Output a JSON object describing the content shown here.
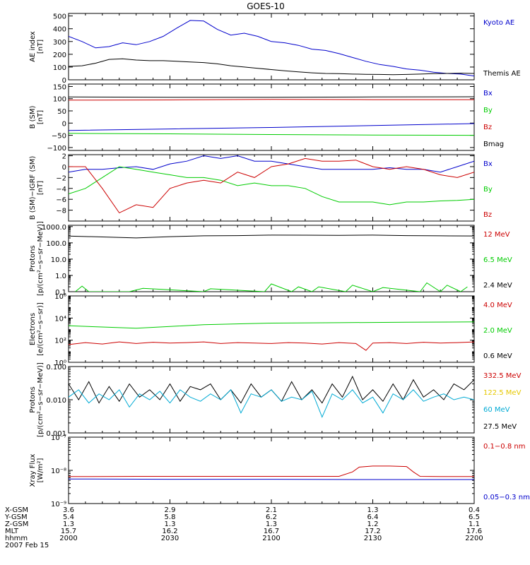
{
  "title": "GOES-10",
  "date_label": "2007 Feb 15",
  "colors": {
    "black": "#000000",
    "blue": "#0000cc",
    "green": "#00cc00",
    "red": "#cc0000",
    "yellow": "#e6c800",
    "cyan": "#00aad4"
  },
  "time_ticks": [
    "2000",
    "2030",
    "2100",
    "2130",
    "2200"
  ],
  "ephemeris": [
    {
      "name": "X-GSM",
      "values": [
        "3.6",
        "2.9",
        "2.1",
        "1.3",
        "0.4"
      ]
    },
    {
      "name": "Y-GSM",
      "values": [
        "5.4",
        "5.8",
        "6.2",
        "6.4",
        "6.5"
      ]
    },
    {
      "name": "Z-GSM",
      "values": [
        "1.3",
        "1.3",
        "1.3",
        "1.2",
        "1.1"
      ]
    },
    {
      "name": "MLT",
      "values": [
        "15.7",
        "16.2",
        "16.7",
        "17.2",
        "17.6"
      ]
    },
    {
      "name": "hhmm",
      "values": [
        "2000",
        "2030",
        "2100",
        "2130",
        "2200"
      ]
    }
  ],
  "chart_data": [
    {
      "type": "line",
      "ylabel": [
        "AE index",
        "[nT]"
      ],
      "yscale": "linear",
      "ylim": [
        0,
        520
      ],
      "yticks": [
        {
          "v": 0,
          "l": "0"
        },
        {
          "v": 100,
          "l": "100"
        },
        {
          "v": 200,
          "l": "200"
        },
        {
          "v": 300,
          "l": "300"
        },
        {
          "v": 400,
          "l": "400"
        },
        {
          "v": 500,
          "l": "500"
        }
      ],
      "xlim": [
        0,
        120
      ],
      "series": [
        {
          "name": "Kyoto AE",
          "color": "blue",
          "label_color": "blue",
          "x": [
            0,
            4,
            8,
            12,
            16,
            20,
            24,
            28,
            32,
            36,
            40,
            44,
            48,
            52,
            56,
            60,
            64,
            68,
            72,
            76,
            80,
            84,
            88,
            92,
            96,
            100,
            104,
            108,
            112,
            116,
            120
          ],
          "values": [
            340,
            300,
            250,
            260,
            290,
            275,
            300,
            340,
            405,
            465,
            460,
            395,
            350,
            365,
            340,
            300,
            290,
            270,
            240,
            230,
            205,
            175,
            145,
            120,
            105,
            85,
            75,
            60,
            50,
            45,
            30
          ]
        },
        {
          "name": "Themis AE",
          "color": "black",
          "label_color": "black",
          "x": [
            0,
            4,
            8,
            12,
            16,
            20,
            24,
            28,
            32,
            36,
            40,
            44,
            48,
            52,
            56,
            60,
            64,
            68,
            72,
            76,
            80,
            84,
            88,
            92,
            96,
            100,
            104,
            108,
            112,
            116,
            120
          ],
          "values": [
            105,
            110,
            130,
            160,
            165,
            155,
            150,
            150,
            145,
            140,
            135,
            125,
            110,
            100,
            90,
            80,
            70,
            62,
            55,
            50,
            48,
            45,
            43,
            42,
            40,
            42,
            45,
            48,
            50,
            52,
            50
          ]
        }
      ]
    },
    {
      "type": "line",
      "ylabel": [
        "B (SM)",
        "[nT]"
      ],
      "yscale": "linear",
      "ylim": [
        -112,
        160
      ],
      "yticks": [
        {
          "v": -100,
          "l": "−100"
        },
        {
          "v": -50,
          "l": "−50"
        },
        {
          "v": 0,
          "l": "0"
        },
        {
          "v": 50,
          "l": "50"
        },
        {
          "v": 100,
          "l": "100"
        },
        {
          "v": 150,
          "l": "150"
        }
      ],
      "xlim": [
        0,
        120
      ],
      "series": [
        {
          "name": "Bx",
          "color": "black",
          "label_color": "blue",
          "x": [
            0,
            30,
            60,
            90,
            120
          ],
          "values": [
            107,
            106,
            106,
            107,
            108
          ]
        },
        {
          "name": "By",
          "color": "red",
          "label_color": "green",
          "x": [
            0,
            30,
            60,
            90,
            120
          ],
          "values": [
            94,
            95,
            97,
            96,
            96
          ]
        },
        {
          "name": "Bz",
          "color": "blue",
          "label_color": "red",
          "x": [
            0,
            30,
            60,
            90,
            120
          ],
          "values": [
            -30,
            -24,
            -18,
            -10,
            -2
          ]
        },
        {
          "name": "Bmag",
          "color": "green",
          "label_color": "black",
          "x": [
            0,
            30,
            60,
            90,
            120
          ],
          "values": [
            -42,
            -44,
            -47,
            -49,
            -50
          ]
        }
      ]
    },
    {
      "type": "line",
      "ylabel": [
        "B (SM)−IGRF (SM)",
        "[nT]"
      ],
      "yscale": "linear",
      "ylim": [
        -10,
        2.2
      ],
      "yticks": [
        {
          "v": -8,
          "l": "−8"
        },
        {
          "v": -6,
          "l": "−6"
        },
        {
          "v": -4,
          "l": "−4"
        },
        {
          "v": -2,
          "l": "−2"
        },
        {
          "v": 0,
          "l": "0"
        },
        {
          "v": 2,
          "l": "2"
        }
      ],
      "xlim": [
        0,
        120
      ],
      "series": [
        {
          "name": "Bx",
          "color": "blue",
          "label_color": "blue",
          "x": [
            0,
            5,
            10,
            15,
            20,
            25,
            30,
            35,
            40,
            45,
            50,
            55,
            60,
            65,
            70,
            75,
            80,
            85,
            90,
            95,
            100,
            105,
            110,
            115,
            120
          ],
          "values": [
            -1,
            -0.5,
            -0.5,
            -0.2,
            0,
            -0.5,
            0.5,
            1,
            2,
            1.5,
            2,
            1,
            1,
            0.5,
            0,
            -0.5,
            -0.5,
            -0.5,
            -0.5,
            -0.2,
            -0.5,
            -0.5,
            -1,
            0,
            1
          ]
        },
        {
          "name": "By",
          "color": "green",
          "label_color": "green",
          "x": [
            0,
            5,
            10,
            15,
            20,
            25,
            30,
            35,
            40,
            45,
            50,
            55,
            60,
            65,
            70,
            75,
            80,
            85,
            90,
            95,
            100,
            105,
            110,
            115,
            120
          ],
          "values": [
            -5,
            -4,
            -2,
            0,
            -0.5,
            -1,
            -1.5,
            -2,
            -2,
            -2.5,
            -3.5,
            -3,
            -3.5,
            -3.5,
            -4,
            -5.5,
            -6.5,
            -6.5,
            -6.5,
            -7,
            -6.5,
            -6.5,
            -6.3,
            -6.2,
            -6
          ]
        },
        {
          "name": "Bz",
          "color": "red",
          "label_color": "red",
          "x": [
            0,
            5,
            10,
            15,
            20,
            25,
            30,
            35,
            40,
            45,
            50,
            55,
            60,
            65,
            70,
            75,
            80,
            85,
            90,
            95,
            100,
            105,
            110,
            115,
            120
          ],
          "values": [
            0,
            0,
            -4,
            -8.5,
            -7,
            -7.5,
            -4,
            -3,
            -2.5,
            -3,
            -1,
            -2,
            0,
            0.5,
            1.5,
            1,
            1,
            1.2,
            0,
            -0.5,
            0,
            -0.5,
            -1.5,
            -2,
            -1
          ]
        }
      ]
    },
    {
      "type": "line",
      "ylabel": [
        "Protons",
        "[p/(cm²−s−sr−MeV)]"
      ],
      "yscale": "log",
      "ylim": [
        0.1,
        1200
      ],
      "yticks": [
        {
          "v": 0.1,
          "l": "0.1"
        },
        {
          "v": 1,
          "l": "1.0"
        },
        {
          "v": 10,
          "l": "10.0"
        },
        {
          "v": 100,
          "l": "100.0"
        },
        {
          "v": 1000,
          "l": "1000.0"
        }
      ],
      "xlim": [
        0,
        120
      ],
      "series": [
        {
          "name": "12 MeV",
          "color": "black",
          "label_color": "red",
          "x": [
            0,
            10,
            20,
            30,
            40,
            50,
            60,
            70,
            80,
            90,
            100,
            110,
            120
          ],
          "values": [
            260,
            230,
            200,
            240,
            270,
            280,
            300,
            295,
            290,
            300,
            280,
            270,
            265
          ]
        },
        {
          "name": "6.5 MeV",
          "color": "green",
          "label_color": "green",
          "x": [
            2,
            4,
            6,
            18,
            22,
            40,
            42,
            58,
            60,
            66,
            68,
            72,
            74,
            82,
            84,
            90,
            93,
            104,
            106,
            110,
            112,
            116,
            118
          ],
          "values": [
            0.1,
            0.22,
            0.1,
            0.1,
            0.16,
            0.1,
            0.15,
            0.1,
            0.3,
            0.1,
            0.2,
            0.1,
            0.2,
            0.1,
            0.25,
            0.1,
            0.18,
            0.1,
            0.35,
            0.1,
            0.25,
            0.1,
            0.2
          ]
        },
        {
          "name": "2.4 MeV",
          "color": "black",
          "label_color": "black",
          "x": [],
          "values": []
        }
      ]
    },
    {
      "type": "line",
      "ylabel": [
        "Electrons",
        "[e/(cm²−s−sr)]"
      ],
      "yscale": "log",
      "ylim": [
        1,
        1000000
      ],
      "yticks": [
        {
          "v": 1,
          "l": "10⁰"
        },
        {
          "v": 100,
          "l": "10²"
        },
        {
          "v": 10000,
          "l": "10⁴"
        },
        {
          "v": 1000000,
          "l": "10⁶"
        }
      ],
      "xlim": [
        0,
        120
      ],
      "series": [
        {
          "name": "4.0 MeV",
          "color": "red",
          "label_color": "red",
          "x": [
            0,
            5,
            10,
            15,
            20,
            25,
            30,
            35,
            40,
            45,
            50,
            55,
            60,
            65,
            70,
            75,
            80,
            85,
            88,
            90,
            95,
            100,
            105,
            110,
            115,
            120
          ],
          "values": [
            40,
            60,
            45,
            70,
            50,
            65,
            55,
            60,
            70,
            50,
            60,
            55,
            50,
            60,
            55,
            45,
            60,
            50,
            12,
            55,
            60,
            50,
            65,
            55,
            60,
            70
          ]
        },
        {
          "name": "2.0 MeV",
          "color": "green",
          "label_color": "green",
          "x": [
            0,
            20,
            40,
            60,
            80,
            100,
            120
          ],
          "values": [
            2000,
            1200,
            2500,
            3500,
            3800,
            4200,
            4500
          ]
        },
        {
          "name": "0.6 MeV",
          "color": "black",
          "label_color": "black",
          "x": [],
          "values": []
        }
      ]
    },
    {
      "type": "line",
      "ylabel": [
        "Protons",
        "[p/(cm²−s−sr−MeV)]"
      ],
      "yscale": "log",
      "ylim": [
        0.001,
        0.1
      ],
      "yticks": [
        {
          "v": 0.001,
          "l": "0.001"
        },
        {
          "v": 0.01,
          "l": "0.010"
        },
        {
          "v": 0.1,
          "l": "0.100"
        }
      ],
      "xlim": [
        0,
        120
      ],
      "series": [
        {
          "name": "332.5 MeV",
          "color": "black",
          "label_color": "red",
          "x": [
            0,
            3,
            6,
            9,
            12,
            15,
            18,
            21,
            24,
            27,
            30,
            33,
            36,
            39,
            42,
            45,
            48,
            51,
            54,
            57,
            60,
            63,
            66,
            69,
            72,
            75,
            78,
            81,
            84,
            87,
            90,
            93,
            96,
            99,
            102,
            105,
            108,
            111,
            114,
            117,
            120
          ],
          "values": [
            0.03,
            0.01,
            0.035,
            0.008,
            0.025,
            0.009,
            0.03,
            0.012,
            0.02,
            0.01,
            0.03,
            0.009,
            0.025,
            0.02,
            0.03,
            0.01,
            0.02,
            0.008,
            0.03,
            0.012,
            0.02,
            0.009,
            0.035,
            0.01,
            0.02,
            0.008,
            0.03,
            0.012,
            0.05,
            0.01,
            0.02,
            0.009,
            0.03,
            0.01,
            0.04,
            0.012,
            0.02,
            0.01,
            0.03,
            0.02,
            0.04
          ]
        },
        {
          "name": "122.5 MeV",
          "color": "yellow",
          "label_color": "yellow",
          "x": [],
          "values": []
        },
        {
          "name": "60 MeV",
          "color": "cyan",
          "label_color": "cyan",
          "x": [
            0,
            3,
            6,
            9,
            12,
            15,
            18,
            21,
            24,
            27,
            30,
            33,
            36,
            39,
            42,
            45,
            48,
            51,
            54,
            57,
            60,
            63,
            66,
            69,
            72,
            75,
            78,
            81,
            84,
            87,
            90,
            93,
            96,
            99,
            102,
            105,
            108,
            111,
            114,
            117,
            120
          ],
          "values": [
            0.012,
            0.02,
            0.008,
            0.015,
            0.01,
            0.02,
            0.006,
            0.015,
            0.01,
            0.018,
            0.008,
            0.02,
            0.012,
            0.009,
            0.015,
            0.01,
            0.02,
            0.004,
            0.015,
            0.012,
            0.02,
            0.009,
            0.012,
            0.01,
            0.018,
            0.003,
            0.015,
            0.01,
            0.02,
            0.008,
            0.012,
            0.004,
            0.015,
            0.01,
            0.02,
            0.009,
            0.012,
            0.015,
            0.01,
            0.012,
            0.01
          ]
        },
        {
          "name": "27.5 MeV",
          "color": "black",
          "label_color": "black",
          "x": [],
          "values": []
        }
      ]
    },
    {
      "type": "line",
      "ylabel": [
        "Xray Flux",
        "[W/m²]"
      ],
      "yscale": "log",
      "ylim": [
        1e-09,
        1e-07
      ],
      "yticks": [
        {
          "v": 1e-09,
          "l": "10⁻⁹"
        },
        {
          "v": 1e-08,
          "l": "10⁻⁸"
        },
        {
          "v": 1e-07,
          "l": "10⁻⁷"
        }
      ],
      "xlim": [
        0,
        120
      ],
      "series": [
        {
          "name": "0.1−0.8 nm",
          "color": "red",
          "label_color": "red",
          "x": [
            0,
            20,
            40,
            60,
            80,
            84,
            86,
            90,
            95,
            100,
            102,
            104,
            110,
            120
          ],
          "values": [
            6.5e-09,
            6.6e-09,
            6.6e-09,
            6.6e-09,
            6.6e-09,
            9e-09,
            1.25e-08,
            1.35e-08,
            1.35e-08,
            1.3e-08,
            9e-09,
            6.6e-09,
            6.5e-09,
            6.5e-09
          ]
        },
        {
          "name": "0.05−0.3 nm",
          "color": "blue",
          "label_color": "blue",
          "x": [
            0,
            30,
            60,
            90,
            120
          ],
          "values": [
            5.5e-09,
            5.4e-09,
            5.4e-09,
            5.3e-09,
            5.3e-09
          ]
        }
      ]
    }
  ]
}
